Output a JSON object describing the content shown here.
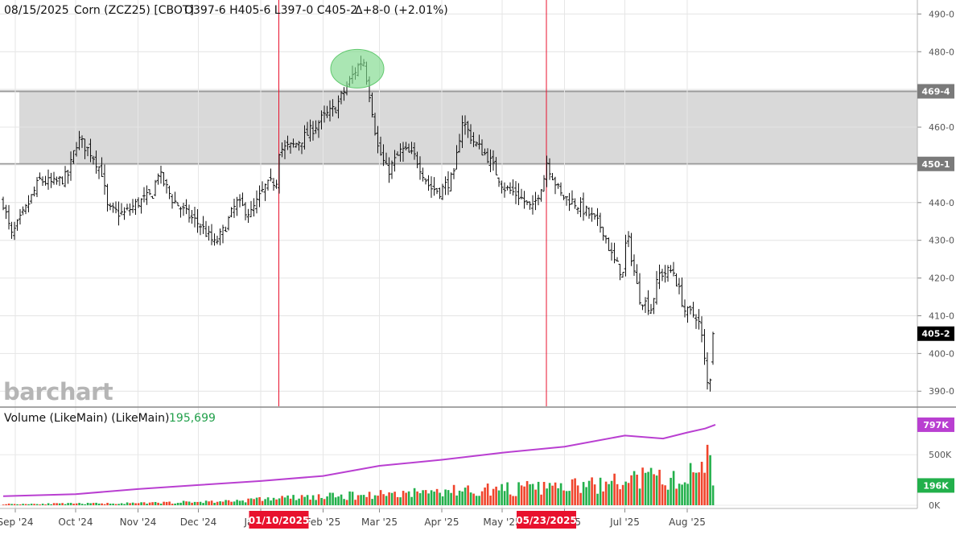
{
  "header": {
    "date": "08/15/2025",
    "symbol": "Corn (ZCZ25) [CBOT]",
    "ohlc": "O397-6 H405-6 L397-0 C405-2",
    "change": "Δ+8-0 (+2.01%)"
  },
  "watermark": "barchart",
  "volume_header": {
    "label": "Volume (LikeMain)  (LikeMain)",
    "value": "195,699"
  },
  "markers": [
    {
      "date_label": "01/10/2025"
    },
    {
      "date_label": "05/23/2025"
    }
  ],
  "colors": {
    "price_bars": "#111111",
    "shaded_zone": "#d9d9d9",
    "marker_line": "#e8112d",
    "highlight_ellipse": "#7dd98a",
    "volume_up": "#22b04b",
    "volume_down": "#f0442c",
    "open_interest": "#b93fd1",
    "last_price_badge": "#000000",
    "zone_badge": "#7a7a7a"
  },
  "chart_data": [
    {
      "type": "ohlc",
      "title": "Corn (ZCZ25) [CBOT] daily",
      "x_ticks": [
        "Sep '24",
        "Oct '24",
        "Nov '24",
        "Dec '24",
        "Jan '25",
        "Feb '25",
        "Mar '25",
        "Apr '25",
        "May '25",
        "Jun '25",
        "Jul '25",
        "Aug '25"
      ],
      "y_ticks": [
        "390-0",
        "400-0",
        "410-0",
        "420-0",
        "430-0",
        "440-0",
        "450-0",
        "460-0",
        "470-0",
        "480-0",
        "490-0"
      ],
      "ylim": [
        386,
        492
      ],
      "shaded_zone": {
        "low": 450.25,
        "high": 469.5,
        "low_label": "450-1",
        "high_label": "469-4"
      },
      "last_price": {
        "value": 405.25,
        "label": "405-2"
      },
      "highlight": {
        "from": "2025-02-12",
        "to": "2025-02-24",
        "price": 475.5
      },
      "vertical_markers": [
        "2025-01-10",
        "2025-05-23"
      ],
      "close_path": [
        [
          "2024-08-26",
          440
        ],
        [
          "2024-08-30",
          431
        ],
        [
          "2024-09-06",
          438
        ],
        [
          "2024-09-13",
          446
        ],
        [
          "2024-09-20",
          445
        ],
        [
          "2024-09-27",
          447
        ],
        [
          "2024-10-02",
          457
        ],
        [
          "2024-10-09",
          453
        ],
        [
          "2024-10-14",
          448
        ],
        [
          "2024-10-17",
          438
        ],
        [
          "2024-10-25",
          437
        ],
        [
          "2024-11-01",
          440
        ],
        [
          "2024-11-08",
          442
        ],
        [
          "2024-11-11",
          448
        ],
        [
          "2024-11-18",
          441
        ],
        [
          "2024-11-25",
          437
        ],
        [
          "2024-12-02",
          434
        ],
        [
          "2024-12-09",
          429
        ],
        [
          "2024-12-13",
          432
        ],
        [
          "2024-12-20",
          440
        ],
        [
          "2024-12-27",
          437
        ],
        [
          "2025-01-03",
          444
        ],
        [
          "2025-01-09",
          446
        ],
        [
          "2025-01-10",
          454
        ],
        [
          "2025-01-17",
          455
        ],
        [
          "2025-01-24",
          458
        ],
        [
          "2025-01-31",
          462
        ],
        [
          "2025-02-07",
          465
        ],
        [
          "2025-02-12",
          470
        ],
        [
          "2025-02-18",
          476
        ],
        [
          "2025-02-21",
          478
        ],
        [
          "2025-02-25",
          466
        ],
        [
          "2025-02-28",
          455
        ],
        [
          "2025-03-05",
          448
        ],
        [
          "2025-03-12",
          454
        ],
        [
          "2025-03-19",
          452
        ],
        [
          "2025-03-26",
          444
        ],
        [
          "2025-03-31",
          443
        ],
        [
          "2025-04-07",
          447
        ],
        [
          "2025-04-11",
          462
        ],
        [
          "2025-04-17",
          456
        ],
        [
          "2025-04-24",
          452
        ],
        [
          "2025-05-02",
          444
        ],
        [
          "2025-05-09",
          442
        ],
        [
          "2025-05-16",
          438
        ],
        [
          "2025-05-22",
          447
        ],
        [
          "2025-05-23",
          451
        ],
        [
          "2025-05-30",
          442
        ],
        [
          "2025-06-06",
          440
        ],
        [
          "2025-06-13",
          437
        ],
        [
          "2025-06-20",
          433
        ],
        [
          "2025-06-25",
          425
        ],
        [
          "2025-06-30",
          421
        ],
        [
          "2025-07-02",
          432
        ],
        [
          "2025-07-08",
          415
        ],
        [
          "2025-07-14",
          412
        ],
        [
          "2025-07-18",
          421
        ],
        [
          "2025-07-25",
          422
        ],
        [
          "2025-07-31",
          411
        ],
        [
          "2025-08-06",
          410
        ],
        [
          "2025-08-08",
          405
        ],
        [
          "2025-08-11",
          392
        ],
        [
          "2025-08-14",
          396
        ],
        [
          "2025-08-15",
          405.25
        ]
      ]
    },
    {
      "type": "bar",
      "title": "Volume (LikeMain)",
      "y_ticks": [
        "0K",
        "500K"
      ],
      "ylim": [
        0,
        900000
      ],
      "last_volume": {
        "value": 195699,
        "label": "196K"
      },
      "open_interest_last": {
        "value": 797000,
        "label": "797K"
      },
      "volume_path": [
        [
          "2024-08-26",
          12000
        ],
        [
          "2024-11-01",
          20000
        ],
        [
          "2024-12-15",
          40000
        ],
        [
          "2025-01-10",
          70000
        ],
        [
          "2025-02-10",
          90000
        ],
        [
          "2025-03-10",
          120000
        ],
        [
          "2025-04-15",
          150000
        ],
        [
          "2025-05-20",
          170000
        ],
        [
          "2025-06-20",
          200000
        ],
        [
          "2025-07-10",
          270000
        ],
        [
          "2025-07-31",
          240000
        ],
        [
          "2025-08-13",
          520000
        ],
        [
          "2025-08-15",
          196000
        ]
      ],
      "open_interest_path": [
        [
          "2024-08-26",
          90000
        ],
        [
          "2024-10-01",
          110000
        ],
        [
          "2024-11-01",
          160000
        ],
        [
          "2024-12-01",
          200000
        ],
        [
          "2025-01-01",
          240000
        ],
        [
          "2025-02-01",
          290000
        ],
        [
          "2025-03-01",
          390000
        ],
        [
          "2025-04-01",
          450000
        ],
        [
          "2025-05-01",
          520000
        ],
        [
          "2025-06-01",
          580000
        ],
        [
          "2025-07-01",
          690000
        ],
        [
          "2025-07-20",
          660000
        ],
        [
          "2025-08-01",
          720000
        ],
        [
          "2025-08-10",
          760000
        ],
        [
          "2025-08-15",
          797000
        ]
      ]
    }
  ]
}
